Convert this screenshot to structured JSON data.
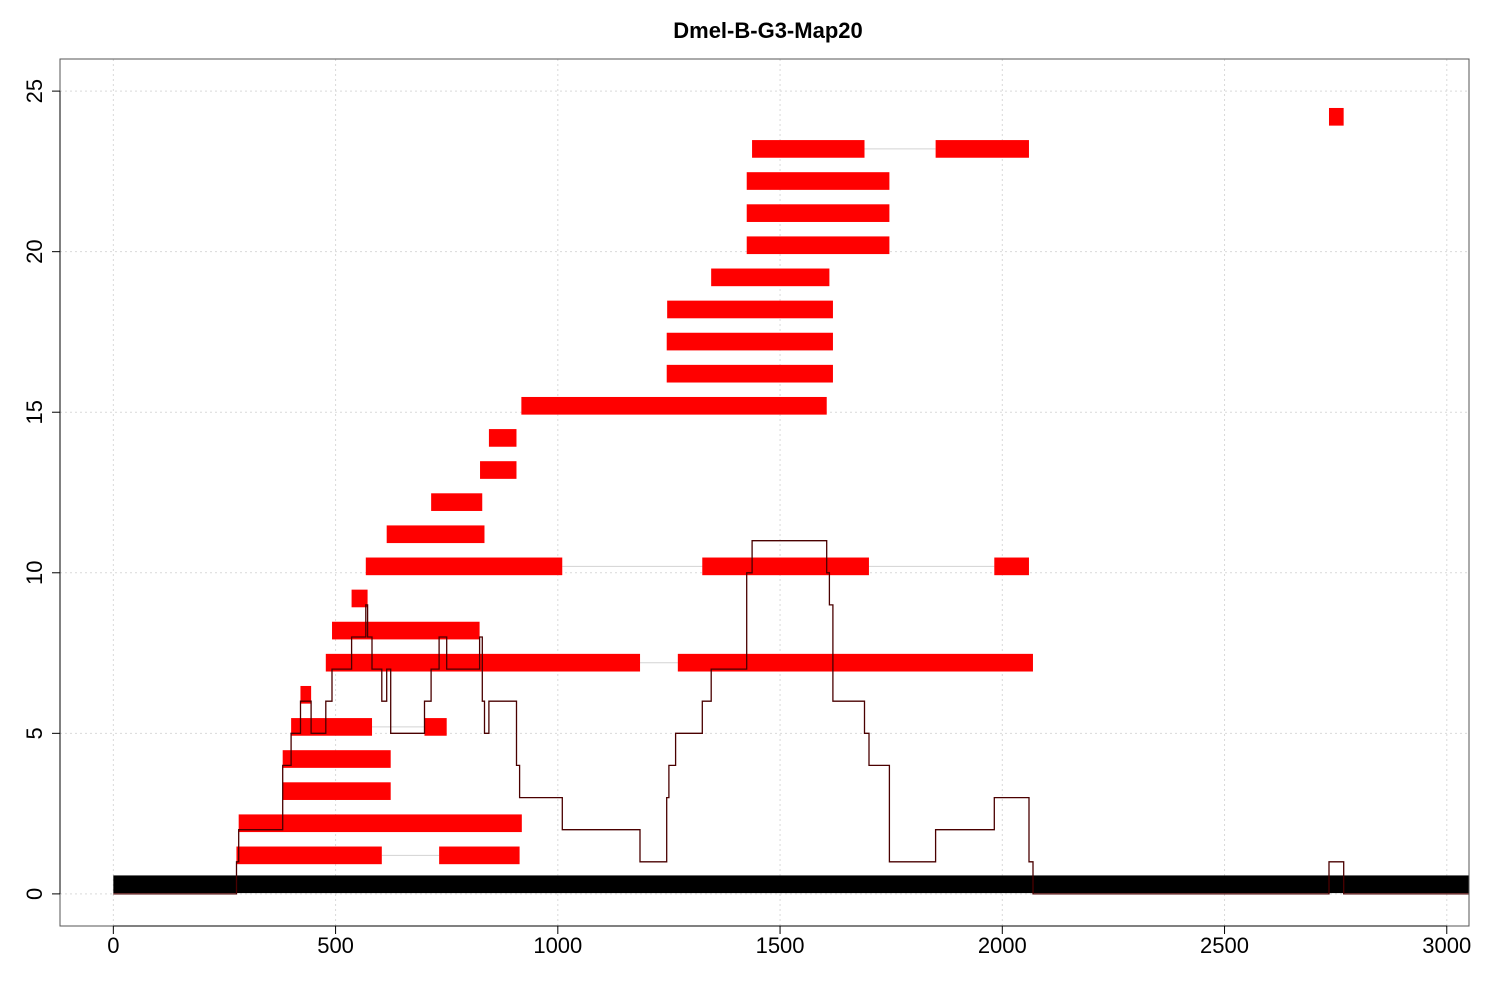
{
  "chart_data": {
    "type": "bar",
    "title": "Dmel-B-G3-Map20",
    "xlabel": "",
    "ylabel": "",
    "xlim": [
      -120,
      3050
    ],
    "ylim": [
      -1,
      26
    ],
    "x_ticks": [
      0,
      500,
      1000,
      1500,
      2000,
      2500,
      3000
    ],
    "y_ticks": [
      0,
      5,
      10,
      15,
      20,
      25
    ],
    "grid": true,
    "colors": {
      "reference": "#000000",
      "segments": "#ff0000",
      "connectors": "#d3d3d3",
      "coverage": "#4a0000"
    },
    "reference": {
      "start": 0,
      "end": 3050,
      "y": 0.3
    },
    "rows": [
      {
        "y": 1.2,
        "segments": [
          [
            277,
            604
          ],
          [
            733,
            914
          ]
        ]
      },
      {
        "y": 2.2,
        "segments": [
          [
            282,
            919
          ]
        ]
      },
      {
        "y": 3.2,
        "segments": [
          [
            381,
            624
          ]
        ]
      },
      {
        "y": 4.2,
        "segments": [
          [
            381,
            624
          ]
        ]
      },
      {
        "y": 5.2,
        "segments": [
          [
            400,
            582
          ],
          [
            700,
            750
          ]
        ]
      },
      {
        "y": 6.2,
        "segments": [
          [
            421,
            445
          ]
        ]
      },
      {
        "y": 7.2,
        "segments": [
          [
            478,
            1185
          ],
          [
            1270,
            2069
          ]
        ]
      },
      {
        "y": 8.2,
        "segments": [
          [
            492,
            824
          ]
        ]
      },
      {
        "y": 9.2,
        "segments": [
          [
            536,
            572
          ]
        ]
      },
      {
        "y": 10.2,
        "segments": [
          [
            568,
            1010
          ],
          [
            1325,
            1700
          ],
          [
            1982,
            2060
          ]
        ]
      },
      {
        "y": 11.2,
        "segments": [
          [
            615,
            835
          ]
        ]
      },
      {
        "y": 12.2,
        "segments": [
          [
            715,
            830
          ]
        ]
      },
      {
        "y": 13.2,
        "segments": [
          [
            825,
            907
          ]
        ]
      },
      {
        "y": 14.2,
        "segments": [
          [
            845,
            907
          ]
        ]
      },
      {
        "y": 15.2,
        "segments": [
          [
            918,
            1605
          ]
        ]
      },
      {
        "y": 16.2,
        "segments": [
          [
            1245,
            1619
          ]
        ]
      },
      {
        "y": 17.2,
        "segments": [
          [
            1245,
            1619
          ]
        ]
      },
      {
        "y": 18.2,
        "segments": [
          [
            1246,
            1619
          ]
        ]
      },
      {
        "y": 19.2,
        "segments": [
          [
            1345,
            1611
          ]
        ]
      },
      {
        "y": 20.2,
        "segments": [
          [
            1425,
            1746
          ]
        ]
      },
      {
        "y": 21.2,
        "segments": [
          [
            1425,
            1746
          ]
        ]
      },
      {
        "y": 22.2,
        "segments": [
          [
            1425,
            1746
          ]
        ]
      },
      {
        "y": 23.2,
        "segments": [
          [
            1437,
            1690
          ],
          [
            1850,
            2060
          ]
        ]
      },
      {
        "y": 24.2,
        "segments": [
          [
            2735,
            2768
          ]
        ]
      }
    ],
    "coverage": [
      [
        0,
        0
      ],
      [
        277,
        0
      ],
      [
        277,
        1
      ],
      [
        282,
        1
      ],
      [
        282,
        2
      ],
      [
        381,
        2
      ],
      [
        381,
        4
      ],
      [
        400,
        4
      ],
      [
        400,
        5
      ],
      [
        421,
        5
      ],
      [
        421,
        6
      ],
      [
        445,
        6
      ],
      [
        445,
        5
      ],
      [
        478,
        5
      ],
      [
        478,
        6
      ],
      [
        492,
        6
      ],
      [
        492,
        7
      ],
      [
        536,
        7
      ],
      [
        536,
        8
      ],
      [
        568,
        8
      ],
      [
        568,
        9
      ],
      [
        572,
        9
      ],
      [
        572,
        8
      ],
      [
        582,
        8
      ],
      [
        582,
        7
      ],
      [
        604,
        7
      ],
      [
        604,
        6
      ],
      [
        615,
        6
      ],
      [
        615,
        7
      ],
      [
        624,
        7
      ],
      [
        624,
        5
      ],
      [
        700,
        5
      ],
      [
        700,
        6
      ],
      [
        715,
        6
      ],
      [
        715,
        7
      ],
      [
        733,
        7
      ],
      [
        733,
        8
      ],
      [
        750,
        8
      ],
      [
        750,
        7
      ],
      [
        824,
        7
      ],
      [
        824,
        8
      ],
      [
        830,
        8
      ],
      [
        830,
        6
      ],
      [
        835,
        6
      ],
      [
        835,
        5
      ],
      [
        845,
        5
      ],
      [
        845,
        6
      ],
      [
        907,
        6
      ],
      [
        907,
        4
      ],
      [
        914,
        4
      ],
      [
        914,
        3
      ],
      [
        1010,
        3
      ],
      [
        1010,
        2
      ],
      [
        1185,
        2
      ],
      [
        1185,
        1
      ],
      [
        1245,
        1
      ],
      [
        1245,
        3
      ],
      [
        1250,
        3
      ],
      [
        1250,
        4
      ],
      [
        1265,
        4
      ],
      [
        1265,
        5
      ],
      [
        1325,
        5
      ],
      [
        1325,
        6
      ],
      [
        1345,
        6
      ],
      [
        1345,
        7
      ],
      [
        1425,
        7
      ],
      [
        1425,
        10
      ],
      [
        1437,
        10
      ],
      [
        1437,
        11
      ],
      [
        1605,
        11
      ],
      [
        1605,
        10
      ],
      [
        1611,
        10
      ],
      [
        1611,
        9
      ],
      [
        1619,
        9
      ],
      [
        1619,
        6
      ],
      [
        1690,
        6
      ],
      [
        1690,
        5
      ],
      [
        1700,
        5
      ],
      [
        1700,
        4
      ],
      [
        1746,
        4
      ],
      [
        1746,
        1
      ],
      [
        1850,
        1
      ],
      [
        1850,
        2
      ],
      [
        1982,
        2
      ],
      [
        1982,
        3
      ],
      [
        2060,
        3
      ],
      [
        2060,
        1
      ],
      [
        2069,
        1
      ],
      [
        2069,
        0
      ],
      [
        2735,
        0
      ],
      [
        2735,
        1
      ],
      [
        2768,
        1
      ],
      [
        2768,
        0
      ],
      [
        3050,
        0
      ]
    ]
  }
}
